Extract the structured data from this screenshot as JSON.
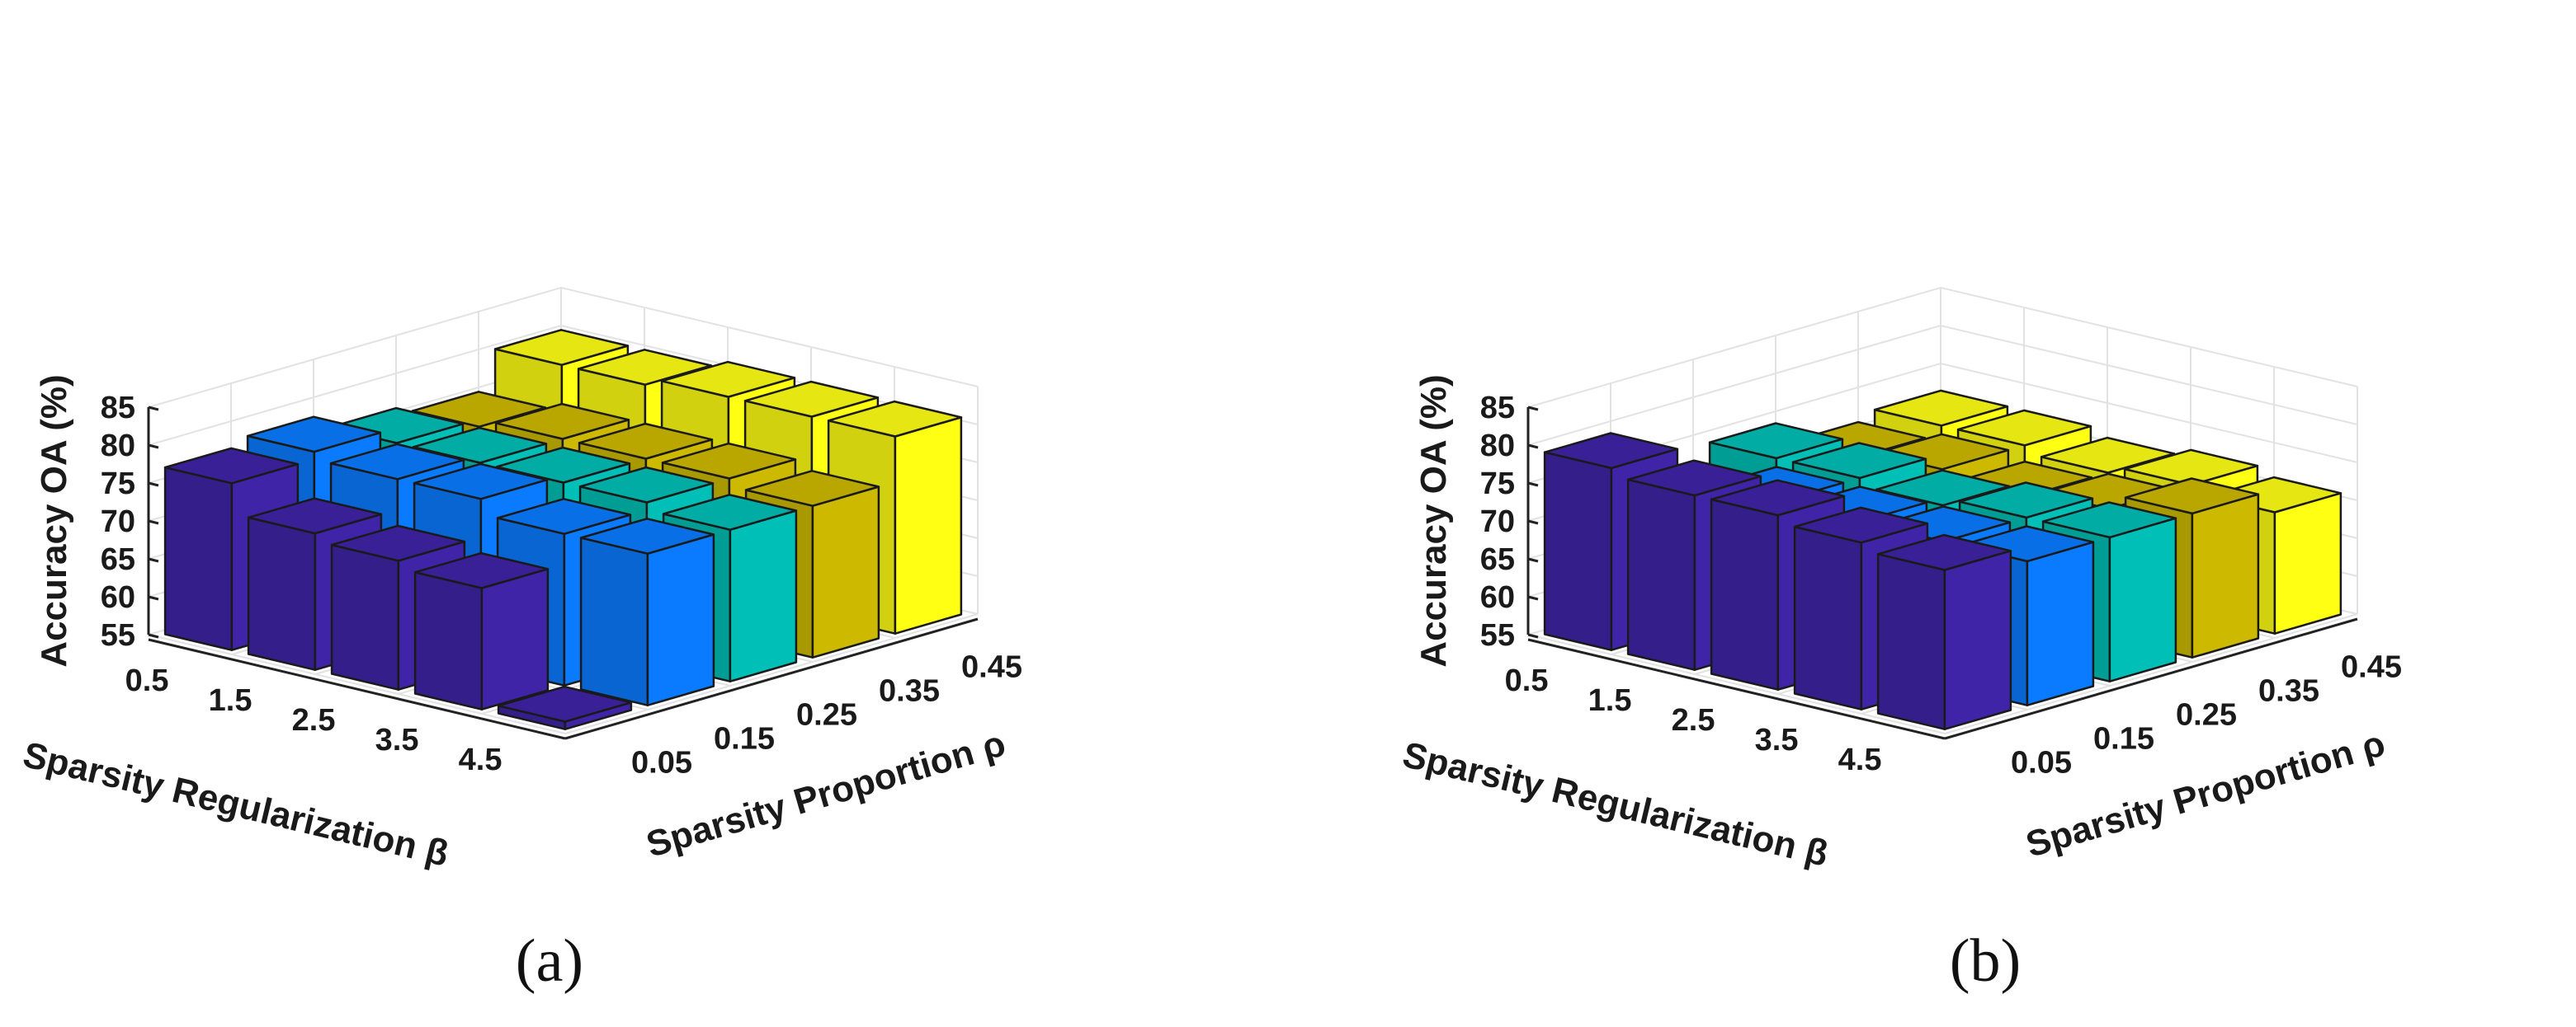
{
  "chart_data": [
    {
      "type": "bar3d",
      "panel_label": "(a)",
      "zlabel": "Accuracy  OA (%)",
      "ylabel": "Sparsity Regularization  β",
      "xlabel": "Sparsity Proportion  ρ",
      "zlim": [
        55,
        85
      ],
      "zticks": [
        "55",
        "60",
        "65",
        "70",
        "75",
        "80",
        "85"
      ],
      "beta": [
        "0.5",
        "1.5",
        "2.5",
        "3.5",
        "4.5"
      ],
      "rho": [
        "0.05",
        "0.15",
        "0.25",
        "0.35",
        "0.45"
      ],
      "grid": true,
      "series": [
        {
          "name": "0.05",
          "color": "#3f24a8",
          "values": [
            77,
            73,
            72,
            71,
            56
          ]
        },
        {
          "name": "0.15",
          "color": "#0a7bff",
          "values": [
            78,
            77,
            77,
            75,
            75
          ]
        },
        {
          "name": "0.25",
          "color": "#00bfb6",
          "values": [
            76,
            76,
            76,
            76,
            75
          ]
        },
        {
          "name": "0.35",
          "color": "#cdba00",
          "values": [
            75,
            76,
            76,
            76,
            75
          ]
        },
        {
          "name": "0.45",
          "color": "#ffff14",
          "values": [
            80,
            80,
            81,
            81,
            81
          ]
        }
      ]
    },
    {
      "type": "bar3d",
      "panel_label": "(b)",
      "zlabel": "Accuracy  OA (%)",
      "ylabel": "Sparsity Regularization  β",
      "xlabel": "Sparsity Proportion  ρ",
      "zlim": [
        55,
        85
      ],
      "zticks": [
        "55",
        "60",
        "65",
        "70",
        "75",
        "80",
        "85"
      ],
      "beta": [
        "0.5",
        "1.5",
        "2.5",
        "3.5",
        "4.5"
      ],
      "rho": [
        "0.05",
        "0.15",
        "0.25",
        "0.35",
        "0.45"
      ],
      "grid": true,
      "series": [
        {
          "name": "0.05",
          "color": "#3f24a8",
          "values": [
            79,
            78,
            78,
            77,
            76
          ]
        },
        {
          "name": "0.15",
          "color": "#0a7bff",
          "values": [
            71,
            74,
            74,
            74,
            74
          ]
        },
        {
          "name": "0.25",
          "color": "#00bfb6",
          "values": [
            74,
            74,
            73,
            74,
            74
          ]
        },
        {
          "name": "0.35",
          "color": "#cdba00",
          "values": [
            71,
            72,
            71,
            72,
            74
          ]
        },
        {
          "name": "0.45",
          "color": "#ffff14",
          "values": [
            72,
            72,
            71,
            72,
            71
          ]
        }
      ]
    }
  ]
}
